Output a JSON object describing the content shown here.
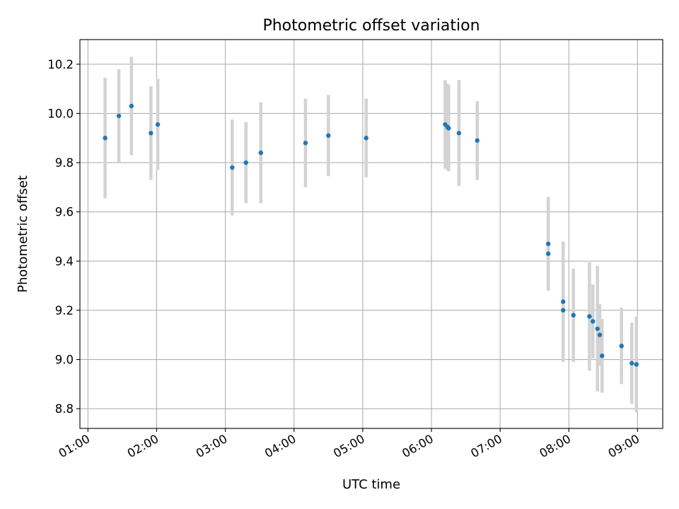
{
  "chart_data": {
    "type": "scatter",
    "title": "Photometric offset variation",
    "xlabel": "UTC time",
    "ylabel": "Photometric offset",
    "x_is_time": true,
    "xlim": [
      "00:53",
      "09:22"
    ],
    "ylim": [
      8.72,
      10.3
    ],
    "x_ticks": [
      "01:00",
      "02:00",
      "03:00",
      "04:00",
      "05:00",
      "06:00",
      "07:00",
      "08:00",
      "09:00"
    ],
    "y_ticks": [
      "8.8",
      "9.0",
      "9.2",
      "9.4",
      "9.6",
      "9.8",
      "10.0",
      "10.2"
    ],
    "grid": true,
    "colors": {
      "points": "#1f77b4",
      "error_bars": "#d3d3d3",
      "grid": "#b0b0b0"
    },
    "points": [
      {
        "x": "01:15",
        "y": 9.9,
        "err": 0.245
      },
      {
        "x": "01:27",
        "y": 9.99,
        "err": 0.19
      },
      {
        "x": "01:38",
        "y": 10.03,
        "err": 0.2
      },
      {
        "x": "01:55",
        "y": 9.92,
        "err": 0.19
      },
      {
        "x": "02:01",
        "y": 9.955,
        "err": 0.185
      },
      {
        "x": "03:06",
        "y": 9.78,
        "err": 0.195
      },
      {
        "x": "03:18",
        "y": 9.8,
        "err": 0.165
      },
      {
        "x": "03:31",
        "y": 9.84,
        "err": 0.205
      },
      {
        "x": "04:10",
        "y": 9.88,
        "err": 0.18
      },
      {
        "x": "04:30",
        "y": 9.91,
        "err": 0.165
      },
      {
        "x": "05:03",
        "y": 9.9,
        "err": 0.16
      },
      {
        "x": "06:12",
        "y": 9.955,
        "err": 0.18
      },
      {
        "x": "06:14",
        "y": 9.945,
        "err": 0.175
      },
      {
        "x": "06:15",
        "y": 9.94,
        "err": 0.175
      },
      {
        "x": "06:24",
        "y": 9.92,
        "err": 0.215
      },
      {
        "x": "06:40",
        "y": 9.89,
        "err": 0.16
      },
      {
        "x": "07:42",
        "y": 9.47,
        "err": 0.19
      },
      {
        "x": "07:42",
        "y": 9.43,
        "err": 0.15
      },
      {
        "x": "07:55",
        "y": 9.235,
        "err": 0.245
      },
      {
        "x": "07:55",
        "y": 9.2,
        "err": 0.21
      },
      {
        "x": "08:04",
        "y": 9.18,
        "err": 0.19
      },
      {
        "x": "08:18",
        "y": 9.175,
        "err": 0.22
      },
      {
        "x": "08:21",
        "y": 9.155,
        "err": 0.15
      },
      {
        "x": "08:25",
        "y": 9.125,
        "err": 0.255
      },
      {
        "x": "08:27",
        "y": 9.1,
        "err": 0.125
      },
      {
        "x": "08:29",
        "y": 9.015,
        "err": 0.15
      },
      {
        "x": "08:46",
        "y": 9.055,
        "err": 0.155
      },
      {
        "x": "08:55",
        "y": 8.985,
        "err": 0.165
      },
      {
        "x": "08:59",
        "y": 8.98,
        "err": 0.195
      }
    ]
  }
}
